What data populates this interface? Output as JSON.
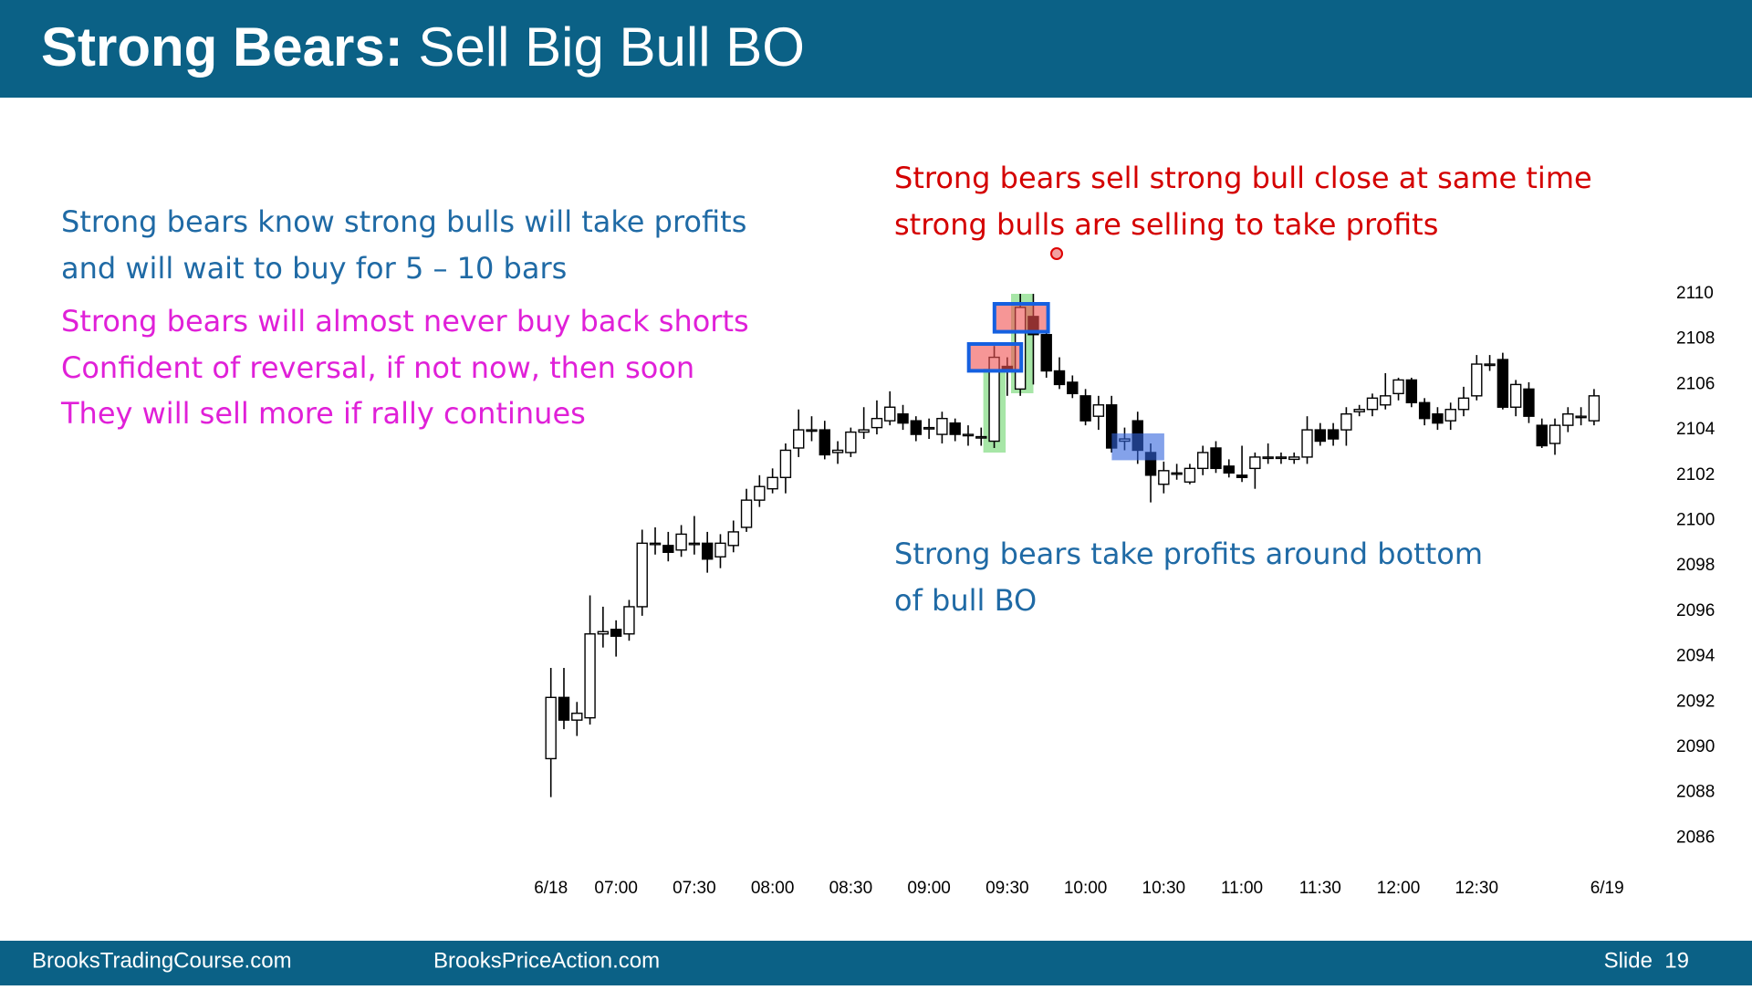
{
  "header": {
    "title_bold": "Strong Bears:",
    "title_rest": "Sell Big Bull BO"
  },
  "chart_data": {
    "type": "candlestick",
    "categories": [
      "6/18",
      null,
      null,
      null,
      null,
      "07:00",
      null,
      null,
      null,
      null,
      null,
      "07:30",
      null,
      null,
      null,
      null,
      null,
      "08:00",
      null,
      null,
      null,
      null,
      null,
      "08:30",
      null,
      null,
      null,
      null,
      null,
      "09:00",
      null,
      null,
      null,
      null,
      null,
      "09:30",
      null,
      null,
      null,
      null,
      null,
      "10:00",
      null,
      null,
      null,
      null,
      null,
      "10:30",
      null,
      null,
      null,
      null,
      null,
      "11:00",
      null,
      null,
      null,
      null,
      null,
      "11:30",
      null,
      null,
      null,
      null,
      null,
      "12:00",
      null,
      null,
      null,
      null,
      null,
      "12:30",
      null,
      null,
      null,
      null,
      null,
      null,
      null,
      null,
      null,
      "6/19"
    ],
    "open": [
      2089.5,
      2092.2,
      2091.2,
      2091.3,
      2095,
      2095.2,
      2095,
      2096.2,
      2099,
      2098.9,
      2098.7,
      2099,
      2099,
      2098.4,
      2098.9,
      2099.7,
      2100.9,
      2101.4,
      2101.9,
      2103.2,
      2104,
      2104,
      2103,
      2103,
      2103.9,
      2104.1,
      2104.4,
      2104.7,
      2104.4,
      2104.1,
      2103.8,
      2104.3,
      2103.8,
      2103.7,
      2103.5,
      2106.8,
      2105.8,
      2109,
      2108.2,
      2106.6,
      2106.1,
      2105.5,
      2104.6,
      2105.1,
      2103.5,
      2104.4,
      2103,
      2101.6,
      2102.1,
      2101.7,
      2102.3,
      2103.2,
      2102.4,
      2102,
      2102.3,
      2102.8,
      2102.8,
      2102.7,
      2102.8,
      2104,
      2104,
      2104,
      2104.8,
      2104.9,
      2105.1,
      2105.6,
      2106.2,
      2105.2,
      2104.7,
      2104.4,
      2104.9,
      2105.5,
      2106.9,
      2107.1,
      2105,
      2105.8,
      2104.2,
      2103.4,
      2104.2,
      2104.6,
      2104.4,
      null
    ],
    "high": [
      2093.5,
      2093.5,
      2092,
      2096.7,
      2096.2,
      2095.6,
      2096.5,
      2099.6,
      2099.7,
      2099.5,
      2099.8,
      2100.2,
      2099.5,
      2099.4,
      2100,
      2101.4,
      2102,
      2102.3,
      2103.4,
      2104.9,
      2104.6,
      2104.4,
      2103.5,
      2104.1,
      2105,
      2105.3,
      2105.7,
      2105.1,
      2104.6,
      2104.5,
      2104.8,
      2104.5,
      2104.2,
      2104.1,
      2107.7,
      2107.2,
      2110,
      2110,
      2108.4,
      2107.2,
      2106.4,
      2105.8,
      2105.5,
      2105.5,
      2104.1,
      2104.8,
      2103.4,
      2102.6,
      2102.5,
      2102.5,
      2103.3,
      2103.5,
      2102.7,
      2103.3,
      2103,
      2103.4,
      2103,
      2103,
      2104.6,
      2104.3,
      2104.3,
      2105,
      2105.1,
      2105.6,
      2106.5,
      2106.3,
      2106.3,
      2105.4,
      2105,
      2105.2,
      2105.9,
      2107.3,
      2107.3,
      2107.4,
      2106.2,
      2106.1,
      2104.5,
      2104.5,
      2105,
      2105,
      2105.8,
      null
    ],
    "low": [
      2087.8,
      2090.8,
      2090.5,
      2091,
      2094.4,
      2094,
      2094.7,
      2095.8,
      2098.5,
      2098.2,
      2098.4,
      2098.5,
      2097.7,
      2097.9,
      2098.6,
      2099.5,
      2100.6,
      2101.2,
      2101.2,
      2102.8,
      2103.5,
      2102.7,
      2102.5,
      2102.8,
      2103.6,
      2103.8,
      2104.2,
      2104,
      2103.5,
      2103.6,
      2103.4,
      2103.5,
      2103.3,
      2103.3,
      2103.2,
      2105.5,
      2105.5,
      2106,
      2106.3,
      2105.8,
      2105.4,
      2104.2,
      2104,
      2103,
      2103.1,
      2102.5,
      2100.8,
      2101.2,
      2101.8,
      2101.6,
      2102,
      2102.1,
      2101.9,
      2101.7,
      2101.4,
      2102.5,
      2102.5,
      2102.5,
      2102.5,
      2103.3,
      2103.3,
      2103.3,
      2104.6,
      2104.6,
      2104.9,
      2105.3,
      2105,
      2104.2,
      2104,
      2104,
      2104.6,
      2105.3,
      2106.6,
      2104.9,
      2104.6,
      2104.3,
      2103.2,
      2102.9,
      2103.9,
      2104.2,
      2104.2,
      null
    ],
    "close": [
      2092.2,
      2091.2,
      2091.5,
      2095,
      2095.1,
      2094.9,
      2096.2,
      2099,
      2099,
      2098.6,
      2099.4,
      2099,
      2098.3,
      2099,
      2099.5,
      2100.9,
      2101.5,
      2101.9,
      2103.1,
      2104,
      2104,
      2102.9,
      2103.1,
      2103.9,
      2104,
      2104.5,
      2105,
      2104.3,
      2103.8,
      2104.1,
      2104.5,
      2103.8,
      2103.8,
      2103.7,
      2107.2,
      2106.6,
      2109.4,
      2108.2,
      2106.6,
      2106,
      2105.6,
      2104.4,
      2105.1,
      2103.2,
      2103.6,
      2103.1,
      2102,
      2102.2,
      2102.1,
      2102.3,
      2103,
      2102.3,
      2102.1,
      2101.9,
      2102.8,
      2102.8,
      2102.8,
      2102.8,
      2104,
      2103.5,
      2103.6,
      2104.7,
      2104.9,
      2105.4,
      2105.5,
      2106.2,
      2105.2,
      2104.5,
      2104.3,
      2104.9,
      2105.4,
      2106.9,
      2106.9,
      2105,
      2106,
      2104.6,
      2103.3,
      2104.2,
      2104.7,
      2104.6,
      2105.5,
      null
    ],
    "up_color": "#ffffff",
    "down_color": "#000000",
    "ylim": [
      2086,
      2110
    ],
    "yticks": [
      2086,
      2088,
      2090,
      2092,
      2094,
      2096,
      2098,
      2100,
      2102,
      2104,
      2106,
      2108,
      2110
    ],
    "annotations": {
      "blue_top": [
        "Strong bears know strong bulls will take profits",
        "and will wait to buy for 5 – 10 bars"
      ],
      "magenta": [
        "Strong bears will almost never buy back shorts",
        "Confident of reversal, if not now, then soon",
        "They will sell more if rally continues"
      ],
      "red": [
        "Strong bears sell strong bull close at same time",
        "strong bulls are selling to take profits"
      ],
      "blue_bottom": [
        "Strong bears take profits around bottom",
        "of bull BO"
      ]
    }
  },
  "footer": {
    "left": "BrooksTradingCourse.com",
    "middle": "BrooksPriceAction.com",
    "slide": "Slide  19"
  }
}
